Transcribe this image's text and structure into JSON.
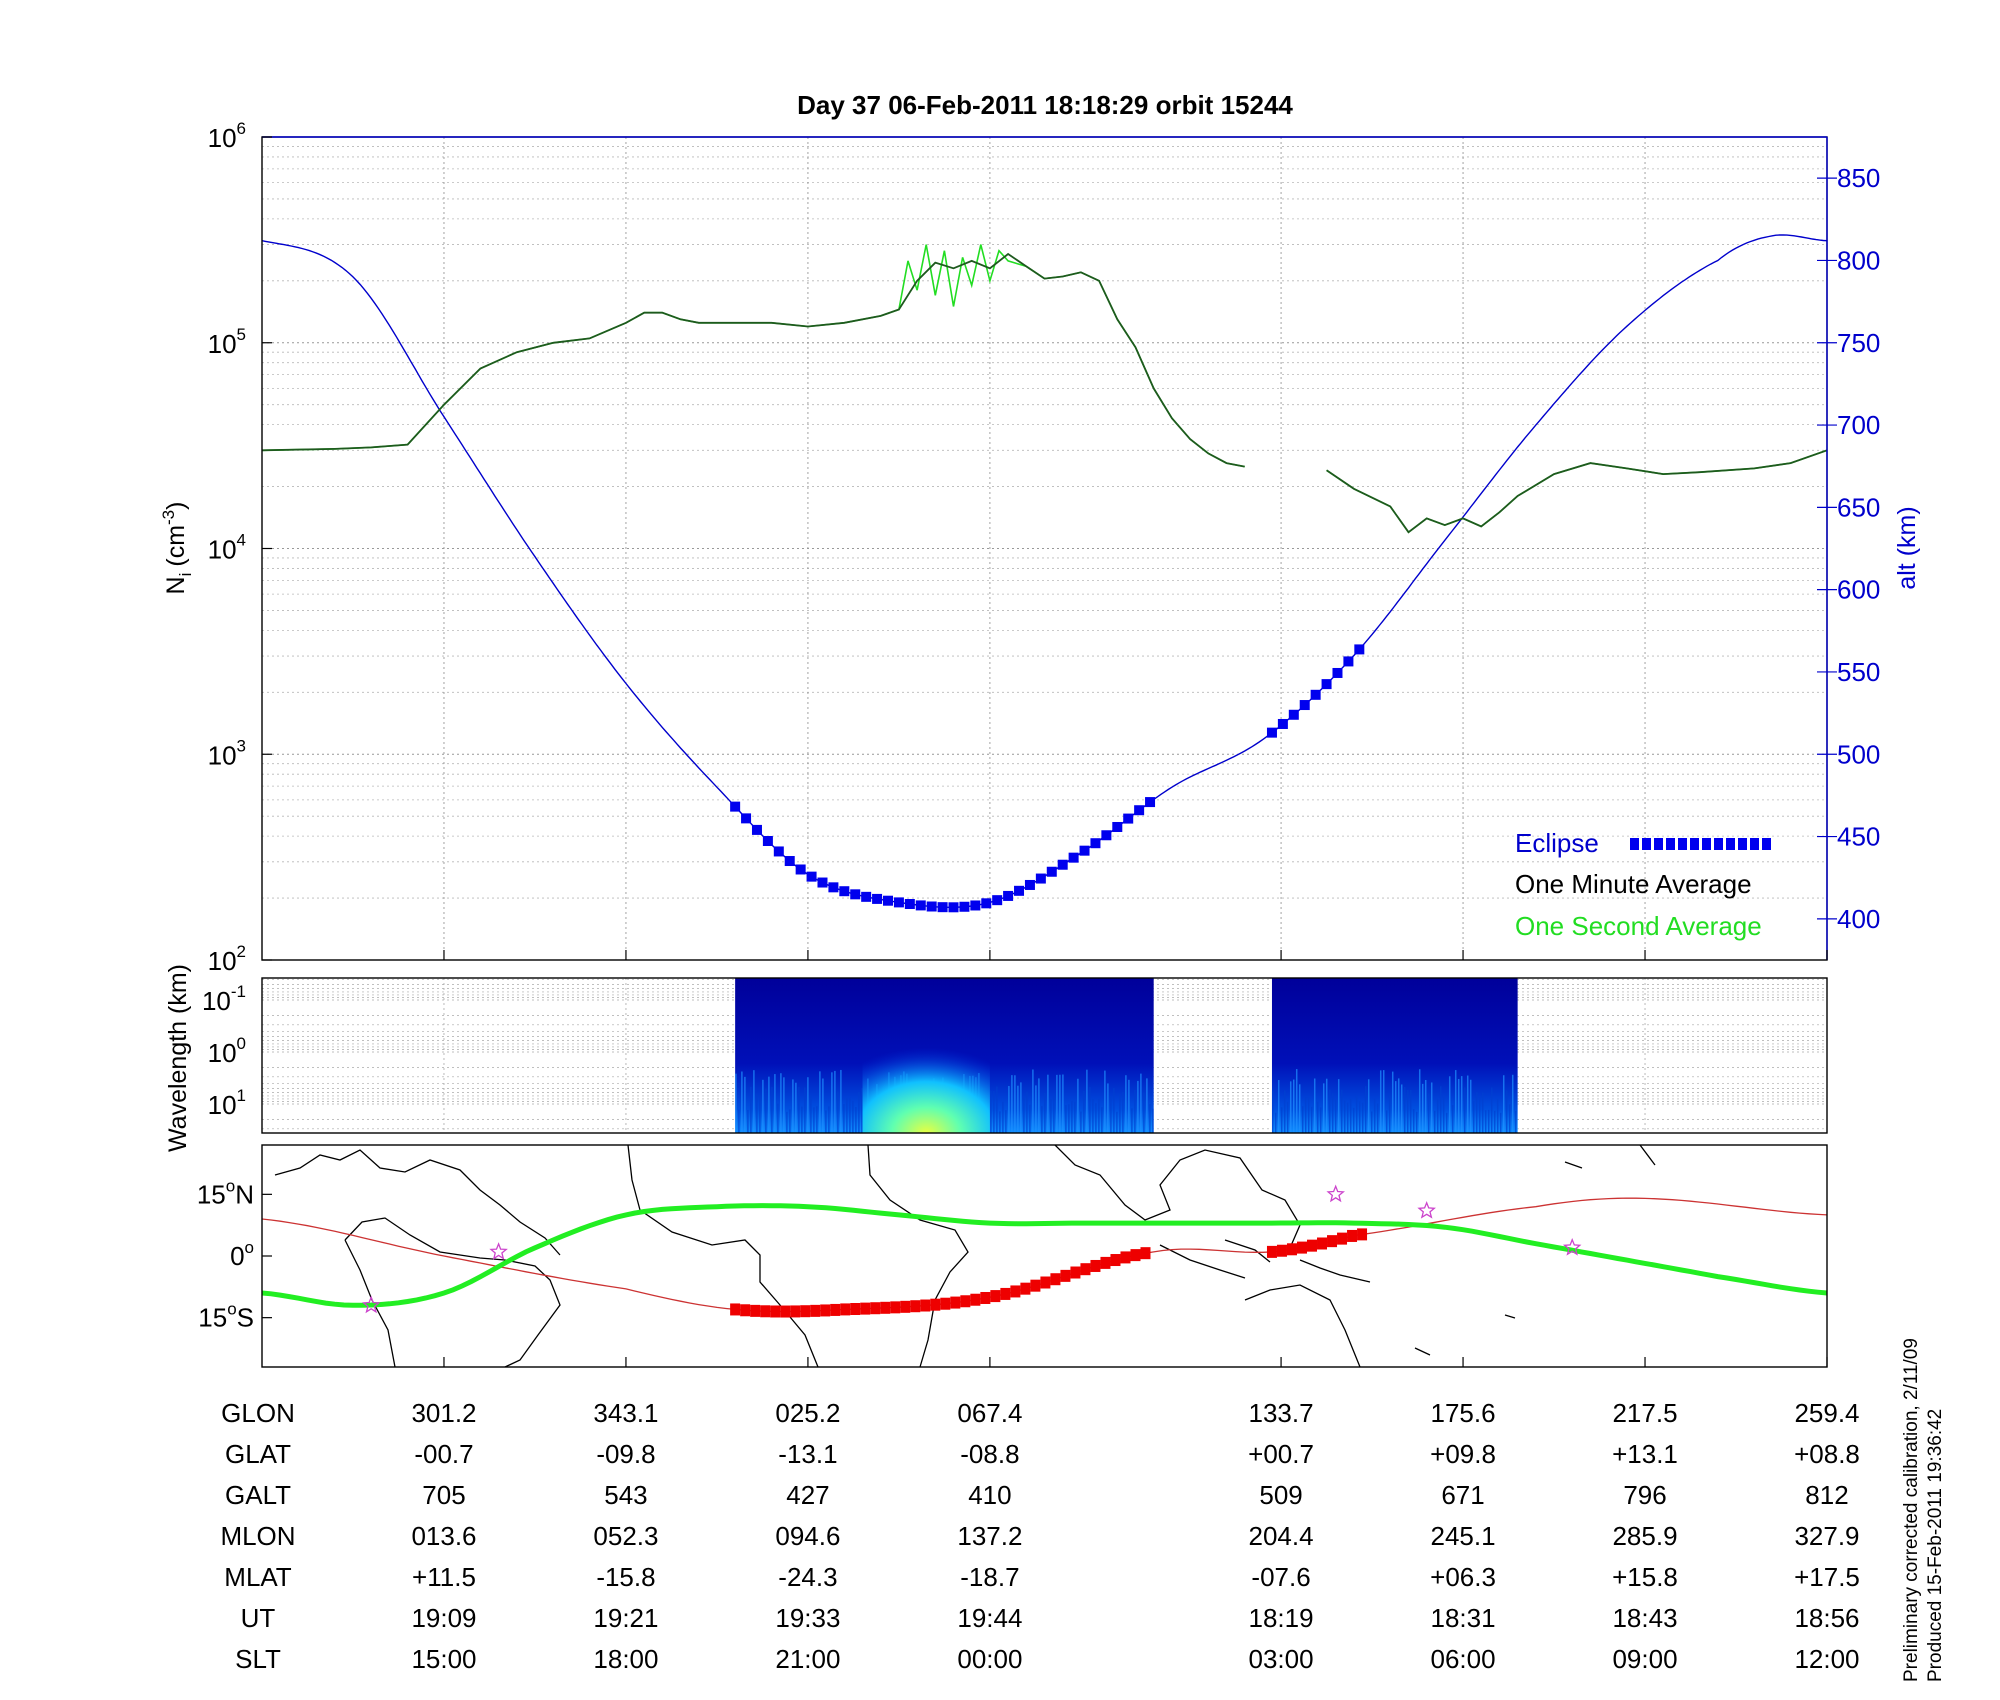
{
  "title": "Day 37  06-Feb-2011 18:18:29   orbit 15244",
  "colors": {
    "altitude": "#0000cc",
    "minute_avg": "#1e5a1e",
    "second_avg": "#22dd22",
    "eclipse": "#0000ee",
    "eclipse_map": "#ee0000",
    "orbit_track": "#22ee22",
    "equator_track": "#cc3333",
    "star": "#cc44cc",
    "axis_right": "#0000cc"
  },
  "chart_data": [
    {
      "type": "line",
      "panel": "ion-density",
      "ylabel": "N",
      "ylabel_sub": "i",
      "ylabel_unit": "(cm",
      "ylabel_unit_sup": "-3",
      "ylabel_unit_end": ")",
      "y_scale": "log",
      "ylim": [
        100,
        1000000
      ],
      "y_ticks": [
        {
          "base": "10",
          "exp": "2",
          "value": 100
        },
        {
          "base": "10",
          "exp": "3",
          "value": 1000
        },
        {
          "base": "10",
          "exp": "4",
          "value": 10000
        },
        {
          "base": "10",
          "exp": "5",
          "value": 100000
        },
        {
          "base": "10",
          "exp": "6",
          "value": 1000000
        }
      ],
      "y2label": "alt (km)",
      "y2lim": [
        375,
        875
      ],
      "y2_ticks": [
        "400",
        "450",
        "500",
        "550",
        "600",
        "650",
        "700",
        "750",
        "800",
        "850"
      ],
      "grid": true,
      "legend_position": "bottom-right",
      "legend": {
        "eclipse": "Eclipse",
        "minute": "One Minute Average",
        "second": "One Second Average"
      },
      "x_domain": [
        0,
        8.6
      ],
      "x_tick_positions": [
        1,
        2,
        3,
        4,
        5.6,
        6.6,
        7.6,
        8.6
      ],
      "series": [
        {
          "name": "One Minute Average",
          "segments": [
            [
              [
                0,
                30000
              ],
              [
                0.4,
                30500
              ],
              [
                0.6,
                31000
              ],
              [
                0.8,
                32000
              ],
              [
                1,
                50000
              ],
              [
                1.2,
                75000
              ],
              [
                1.4,
                90000
              ],
              [
                1.6,
                100000
              ],
              [
                1.8,
                105000
              ],
              [
                2,
                125000
              ],
              [
                2.1,
                140000
              ],
              [
                2.2,
                140000
              ],
              [
                2.3,
                130000
              ],
              [
                2.4,
                125000
              ],
              [
                2.6,
                125000
              ],
              [
                2.8,
                125000
              ],
              [
                3,
                120000
              ],
              [
                3.2,
                125000
              ],
              [
                3.4,
                135000
              ],
              [
                3.5,
                145000
              ],
              [
                3.6,
                200000
              ],
              [
                3.7,
                245000
              ],
              [
                3.8,
                230000
              ],
              [
                3.9,
                250000
              ],
              [
                4,
                230000
              ],
              [
                4.1,
                270000
              ],
              [
                4.2,
                235000
              ],
              [
                4.3,
                205000
              ],
              [
                4.4,
                210000
              ],
              [
                4.5,
                220000
              ],
              [
                4.6,
                200000
              ],
              [
                4.7,
                130000
              ],
              [
                4.8,
                95000
              ],
              [
                4.9,
                60000
              ],
              [
                5,
                43000
              ],
              [
                5.1,
                34000
              ],
              [
                5.2,
                29000
              ],
              [
                5.3,
                26000
              ],
              [
                5.4,
                25000
              ]
            ],
            [
              [
                5.85,
                24000
              ],
              [
                6,
                19500
              ],
              [
                6.2,
                16000
              ],
              [
                6.3,
                12000
              ],
              [
                6.4,
                14000
              ],
              [
                6.5,
                13000
              ],
              [
                6.6,
                14000
              ],
              [
                6.7,
                12800
              ],
              [
                6.8,
                15000
              ],
              [
                6.9,
                18000
              ],
              [
                7.1,
                23000
              ],
              [
                7.3,
                26000
              ],
              [
                7.5,
                24500
              ],
              [
                7.7,
                23000
              ],
              [
                7.9,
                23500
              ],
              [
                8.2,
                24500
              ],
              [
                8.4,
                26000
              ],
              [
                8.6,
                30000
              ]
            ]
          ]
        },
        {
          "name": "One Second Average",
          "segments": [
            [
              [
                0,
                30000
              ],
              [
                0.4,
                30500
              ],
              [
                0.6,
                31000
              ],
              [
                0.8,
                32000
              ],
              [
                1,
                50000
              ],
              [
                1.2,
                75000
              ],
              [
                1.4,
                90000
              ],
              [
                1.6,
                100000
              ],
              [
                1.8,
                105000
              ],
              [
                2,
                125000
              ],
              [
                2.1,
                140000
              ],
              [
                2.2,
                140000
              ],
              [
                2.3,
                130000
              ],
              [
                2.4,
                125000
              ],
              [
                2.6,
                125000
              ],
              [
                2.8,
                125000
              ],
              [
                3,
                120000
              ],
              [
                3.2,
                125000
              ],
              [
                3.4,
                135000
              ],
              [
                3.5,
                145000
              ],
              [
                3.55,
                250000
              ],
              [
                3.6,
                180000
              ],
              [
                3.65,
                300000
              ],
              [
                3.7,
                170000
              ],
              [
                3.75,
                280000
              ],
              [
                3.8,
                150000
              ],
              [
                3.85,
                260000
              ],
              [
                3.9,
                190000
              ],
              [
                3.95,
                300000
              ],
              [
                4,
                200000
              ],
              [
                4.05,
                280000
              ],
              [
                4.1,
                250000
              ],
              [
                4.2,
                235000
              ],
              [
                4.3,
                205000
              ],
              [
                4.4,
                210000
              ],
              [
                4.5,
                220000
              ],
              [
                4.6,
                200000
              ],
              [
                4.7,
                130000
              ],
              [
                4.8,
                95000
              ],
              [
                4.9,
                60000
              ],
              [
                5,
                43000
              ],
              [
                5.1,
                34000
              ],
              [
                5.2,
                29000
              ],
              [
                5.3,
                26000
              ],
              [
                5.4,
                25000
              ]
            ],
            [
              [
                5.85,
                24000
              ],
              [
                6,
                19500
              ],
              [
                6.2,
                16000
              ],
              [
                6.3,
                12000
              ],
              [
                6.4,
                14000
              ],
              [
                6.5,
                13000
              ],
              [
                6.6,
                14000
              ],
              [
                6.7,
                12800
              ],
              [
                6.8,
                15000
              ],
              [
                6.9,
                18000
              ],
              [
                7.1,
                23000
              ],
              [
                7.3,
                26000
              ],
              [
                7.5,
                24500
              ],
              [
                7.7,
                23000
              ],
              [
                7.9,
                23500
              ],
              [
                8.2,
                24500
              ],
              [
                8.4,
                26000
              ],
              [
                8.6,
                30000
              ]
            ]
          ]
        },
        {
          "name": "alt (km)",
          "axis": "right",
          "points": [
            [
              0,
              812
            ],
            [
              0.5,
              790
            ],
            [
              1,
              705
            ],
            [
              1.5,
              620
            ],
            [
              2,
              543
            ],
            [
              2.5,
              480
            ],
            [
              3,
              427
            ],
            [
              3.5,
              410
            ],
            [
              4,
              410
            ],
            [
              4.5,
              440
            ],
            [
              5,
              480
            ],
            [
              5.5,
              509
            ],
            [
              6,
              560
            ],
            [
              6.5,
              630
            ],
            [
              7,
              700
            ],
            [
              7.5,
              760
            ],
            [
              8,
              800
            ],
            [
              8.3,
              815
            ],
            [
              8.6,
              812
            ]
          ]
        }
      ],
      "eclipse_segments": [
        [
          2.6,
          4.9
        ],
        [
          5.55,
          6.05
        ]
      ]
    },
    {
      "type": "heatmap",
      "panel": "wavelength-spectrogram",
      "ylabel": "Wavelength (km)",
      "y_ticks": [
        {
          "base": "10",
          "exp": "-1"
        },
        {
          "base": "10",
          "exp": "0"
        },
        {
          "base": "10",
          "exp": "1"
        }
      ],
      "data_intervals": [
        [
          2.6,
          4.9
        ],
        [
          5.55,
          6.9
        ]
      ],
      "peak_region": [
        3.3,
        4.0
      ]
    },
    {
      "type": "line",
      "panel": "map",
      "y_ticks": [
        {
          "value": 15,
          "label": "15",
          "hemi": "N"
        },
        {
          "value": 0,
          "label": "0",
          "hemi": ""
        },
        {
          "value": -15,
          "label": "15",
          "hemi": "S"
        }
      ],
      "ylim": [
        -27,
        27
      ],
      "orbit_track": [
        [
          0,
          -9
        ],
        [
          0.5,
          -12
        ],
        [
          1,
          -9
        ],
        [
          1.5,
          2
        ],
        [
          2,
          10
        ],
        [
          2.5,
          12
        ],
        [
          3,
          12
        ],
        [
          3.5,
          10
        ],
        [
          4,
          8
        ],
        [
          4.5,
          8
        ],
        [
          5,
          8
        ],
        [
          5.5,
          8
        ],
        [
          6,
          8
        ],
        [
          6.5,
          7
        ],
        [
          7,
          3
        ],
        [
          7.5,
          -1
        ],
        [
          8,
          -5
        ],
        [
          8.6,
          -9
        ]
      ],
      "equator_track": [
        [
          0,
          9
        ],
        [
          1,
          0
        ],
        [
          2,
          -8
        ],
        [
          2.6,
          -13
        ],
        [
          3.2,
          -13
        ],
        [
          4,
          -10
        ],
        [
          4.9,
          1
        ],
        [
          5.55,
          1
        ],
        [
          6,
          5
        ],
        [
          7,
          12
        ],
        [
          7.6,
          14
        ],
        [
          8.6,
          10
        ]
      ],
      "eclipse_segments": [
        [
          2.6,
          4.9
        ],
        [
          5.55,
          6.05
        ]
      ],
      "stars": [
        [
          0.6,
          -12
        ],
        [
          1.3,
          1
        ],
        [
          5.9,
          15
        ],
        [
          6.4,
          11
        ],
        [
          7.2,
          2
        ]
      ]
    }
  ],
  "ephemeris": {
    "labels": [
      "GLON",
      "GLAT",
      "GALT",
      "MLON",
      "MLAT",
      "UT",
      "SLT"
    ],
    "columns": [
      [
        "301.2",
        "-00.7",
        "705",
        "013.6",
        "+11.5",
        "19:09",
        "15:00"
      ],
      [
        "343.1",
        "-09.8",
        "543",
        "052.3",
        "-15.8",
        "19:21",
        "18:00"
      ],
      [
        "025.2",
        "-13.1",
        "427",
        "094.6",
        "-24.3",
        "19:33",
        "21:00"
      ],
      [
        "067.4",
        "-08.8",
        "410",
        "137.2",
        "-18.7",
        "19:44",
        "00:00"
      ],
      [
        "133.7",
        "+00.7",
        "509",
        "204.4",
        "-07.6",
        "18:19",
        "03:00"
      ],
      [
        "175.6",
        "+09.8",
        "671",
        "245.1",
        "+06.3",
        "18:31",
        "06:00"
      ],
      [
        "217.5",
        "+13.1",
        "796",
        "285.9",
        "+15.8",
        "18:43",
        "09:00"
      ],
      [
        "259.4",
        "+08.8",
        "812",
        "327.9",
        "+17.5",
        "18:56",
        "12:00"
      ]
    ]
  },
  "footer": {
    "line1": "Preliminary corrected calibration, 2/11/09",
    "line2": "Produced 15-Feb-2011 19:36:42"
  }
}
